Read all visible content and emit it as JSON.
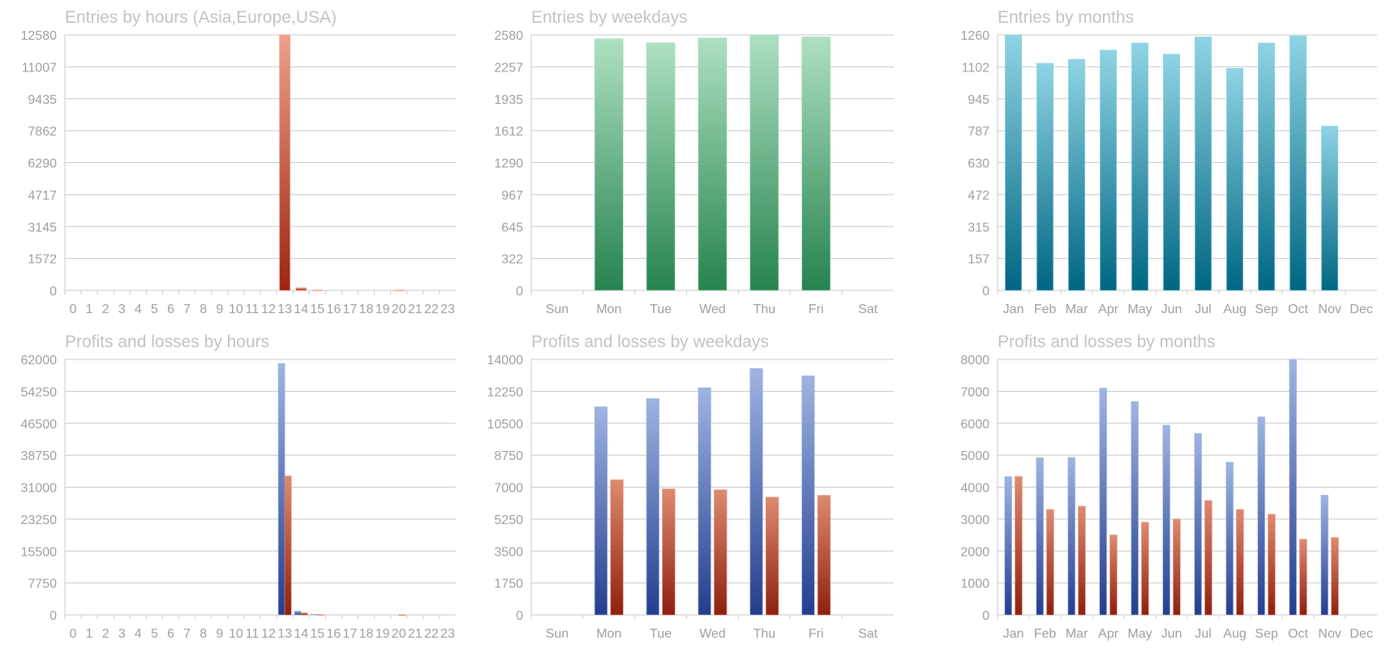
{
  "colors": {
    "red": [
      "#eea08c",
      "#9e2510"
    ],
    "green": [
      "#aee0c2",
      "#26834f"
    ],
    "teal": [
      "#8fd4e4",
      "#006682"
    ],
    "blue": [
      "#9fb4e2",
      "#233e8e"
    ],
    "orange_red": [
      "#de8a70",
      "#8e2010"
    ],
    "grid": "#c8c8c8",
    "text": "#9e9e9e",
    "title": "#c2c2c2"
  },
  "chart_data": [
    {
      "type": "bar",
      "title": "Entries by hours (Asia,Europe,USA)",
      "categories": [
        "0",
        "1",
        "2",
        "3",
        "4",
        "5",
        "6",
        "7",
        "8",
        "9",
        "10",
        "11",
        "12",
        "13",
        "14",
        "15",
        "16",
        "17",
        "18",
        "19",
        "20",
        "21",
        "22",
        "23"
      ],
      "series": [
        {
          "color": "red",
          "values": [
            0,
            0,
            0,
            0,
            0,
            0,
            0,
            0,
            0,
            0,
            0,
            0,
            0,
            12580,
            130,
            20,
            0,
            0,
            0,
            0,
            15,
            0,
            0,
            0
          ]
        }
      ],
      "ylim": [
        0,
        12580
      ],
      "yticks": [
        "0",
        "1572",
        "3145",
        "4717",
        "6290",
        "7862",
        "9435",
        "11007",
        "12580"
      ],
      "grid": true
    },
    {
      "type": "bar",
      "title": "Entries by weekdays",
      "categories": [
        "Sun",
        "Mon",
        "Tue",
        "Wed",
        "Thu",
        "Fri",
        "Sat"
      ],
      "series": [
        {
          "color": "green",
          "values": [
            0,
            2540,
            2500,
            2550,
            2580,
            2560,
            0
          ]
        }
      ],
      "ylim": [
        0,
        2580
      ],
      "yticks": [
        "0",
        "322",
        "645",
        "967",
        "1290",
        "1612",
        "1935",
        "2257",
        "2580"
      ],
      "grid": true
    },
    {
      "type": "bar",
      "title": "Entries by months",
      "categories": [
        "Jan",
        "Feb",
        "Mar",
        "Apr",
        "May",
        "Jun",
        "Jul",
        "Aug",
        "Sep",
        "Oct",
        "Nov",
        "Dec"
      ],
      "series": [
        {
          "color": "teal",
          "values": [
            1260,
            1120,
            1140,
            1185,
            1220,
            1165,
            1250,
            1095,
            1220,
            1255,
            810,
            0
          ]
        }
      ],
      "ylim": [
        0,
        1260
      ],
      "yticks": [
        "0",
        "157",
        "315",
        "472",
        "630",
        "787",
        "945",
        "1102",
        "1260"
      ],
      "grid": true
    },
    {
      "type": "bar",
      "title": "Profits and losses by hours",
      "categories": [
        "0",
        "1",
        "2",
        "3",
        "4",
        "5",
        "6",
        "7",
        "8",
        "9",
        "10",
        "11",
        "12",
        "13",
        "14",
        "15",
        "16",
        "17",
        "18",
        "19",
        "20",
        "21",
        "22",
        "23"
      ],
      "series": [
        {
          "color": "blue",
          "values": [
            0,
            0,
            0,
            0,
            0,
            0,
            0,
            0,
            0,
            0,
            0,
            0,
            0,
            61000,
            950,
            120,
            0,
            0,
            0,
            0,
            0,
            0,
            0,
            0
          ]
        },
        {
          "color": "orange_red",
          "values": [
            0,
            0,
            0,
            0,
            0,
            0,
            0,
            0,
            0,
            0,
            0,
            0,
            0,
            33700,
            500,
            80,
            0,
            0,
            0,
            0,
            60,
            0,
            0,
            0
          ]
        }
      ],
      "ylim": [
        0,
        62000
      ],
      "yticks": [
        "0",
        "7750",
        "15500",
        "23250",
        "31000",
        "38750",
        "46500",
        "54250",
        "62000"
      ],
      "grid": true
    },
    {
      "type": "bar",
      "title": "Profits and losses by weekdays",
      "categories": [
        "Sun",
        "Mon",
        "Tue",
        "Wed",
        "Thu",
        "Fri",
        "Sat"
      ],
      "series": [
        {
          "color": "blue",
          "values": [
            0,
            11400,
            11850,
            12450,
            13500,
            13100,
            0
          ]
        },
        {
          "color": "orange_red",
          "values": [
            0,
            7400,
            6900,
            6850,
            6450,
            6550,
            0
          ]
        }
      ],
      "ylim": [
        0,
        14000
      ],
      "yticks": [
        "0",
        "1750",
        "3500",
        "5250",
        "7000",
        "8750",
        "10500",
        "12250",
        "14000"
      ],
      "grid": true
    },
    {
      "type": "bar",
      "title": "Profits and losses by months",
      "categories": [
        "Jan",
        "Feb",
        "Mar",
        "Apr",
        "May",
        "Jun",
        "Jul",
        "Aug",
        "Sep",
        "Oct",
        "Nov",
        "Dec"
      ],
      "series": [
        {
          "color": "blue",
          "values": [
            4330,
            4920,
            4930,
            7100,
            6680,
            5940,
            5680,
            4780,
            6200,
            8000,
            3750,
            0
          ]
        },
        {
          "color": "orange_red",
          "values": [
            4330,
            3300,
            3400,
            2500,
            2900,
            3000,
            3580,
            3300,
            3150,
            2370,
            2420,
            0
          ]
        }
      ],
      "ylim": [
        0,
        8000
      ],
      "yticks": [
        "0",
        "1000",
        "2000",
        "3000",
        "4000",
        "5000",
        "6000",
        "7000",
        "8000"
      ],
      "grid": true
    }
  ]
}
